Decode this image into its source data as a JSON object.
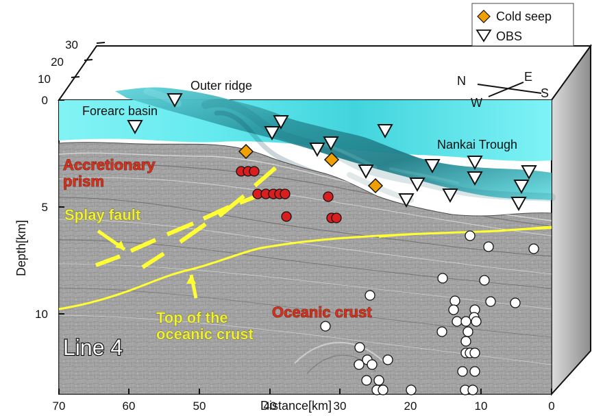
{
  "figure": {
    "title_labels": {
      "outer_ridge": "Outer ridge",
      "forearc_basin": "Forearc basin",
      "nankai_trough": "Nankai Trough",
      "accretionary_prism": "Accretionary\nprism",
      "splay_fault": "Splay fault",
      "oceanic_crust": "Oceanic crust",
      "top_oceanic_crust": "Top of the\noceanic crust",
      "line_label": "Line 4"
    },
    "legend": {
      "items": [
        {
          "label": "Cold seep",
          "icon": "diamond",
          "color": "#f0a000"
        },
        {
          "label": "OBS",
          "icon": "triangle-down",
          "color": "#ffffff"
        }
      ]
    },
    "compass": {
      "labels": [
        "N",
        "E",
        "W",
        "S"
      ]
    },
    "axes": {
      "x": {
        "label": "Distance[km]",
        "ticks": [
          "70",
          "60",
          "50",
          "40",
          "30",
          "20",
          "10",
          "0"
        ]
      },
      "y": {
        "label": "Depth[km]",
        "ticks": [
          "0",
          "5",
          "10"
        ]
      },
      "z": {
        "ticks": [
          "10",
          "20",
          "30"
        ]
      }
    },
    "colors": {
      "sea": "#4fdfe4",
      "sea_dark": "#2ea8b2",
      "seismic_gray": "#a7a7a7",
      "fault_yellow": "#ffff33",
      "red_marker": "#d81e1e",
      "white_marker": "#ffffff",
      "cold_seep_orange": "#f0a000"
    }
  }
}
